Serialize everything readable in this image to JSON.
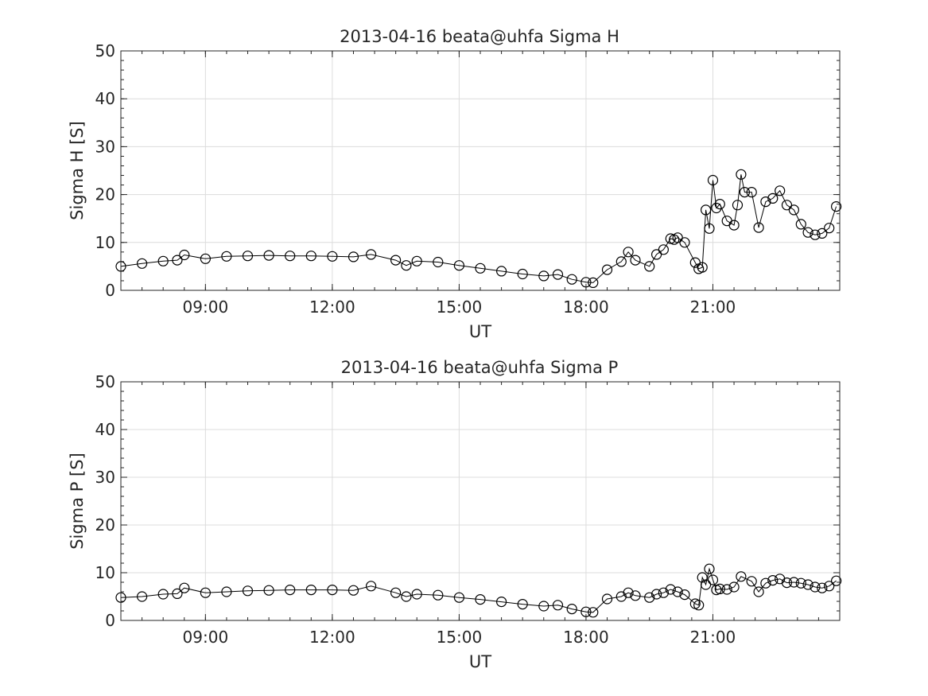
{
  "chart_data": [
    {
      "type": "line",
      "title": "2013-04-16  beata@uhfa Sigma H",
      "xlabel": "UT",
      "ylabel": "Sigma H [S]",
      "xlim": [
        "07:00",
        "24:00"
      ],
      "ylim": [
        0,
        50
      ],
      "xticks": [
        "09:00",
        "12:00",
        "15:00",
        "18:00",
        "21:00"
      ],
      "yticks": [
        0,
        10,
        20,
        30,
        40,
        50
      ],
      "grid": true,
      "marker": "open-circle",
      "color": "#000000",
      "x": [
        "07:00",
        "07:30",
        "08:00",
        "08:20",
        "08:30",
        "09:00",
        "09:30",
        "10:00",
        "10:30",
        "11:00",
        "11:30",
        "12:00",
        "12:30",
        "12:55",
        "13:30",
        "13:45",
        "14:00",
        "14:30",
        "15:00",
        "15:30",
        "16:00",
        "16:30",
        "17:00",
        "17:20",
        "17:40",
        "18:00",
        "18:10",
        "18:30",
        "18:50",
        "19:00",
        "19:10",
        "19:30",
        "19:40",
        "19:50",
        "20:00",
        "20:05",
        "20:10",
        "20:20",
        "20:35",
        "20:40",
        "20:45",
        "20:50",
        "20:55",
        "21:00",
        "21:05",
        "21:10",
        "21:20",
        "21:30",
        "21:35",
        "21:40",
        "21:45",
        "21:55",
        "22:05",
        "22:15",
        "22:25",
        "22:35",
        "22:45",
        "22:55",
        "23:05",
        "23:15",
        "23:25",
        "23:35",
        "23:45",
        "23:55"
      ],
      "y": [
        5.0,
        5.6,
        6.1,
        6.3,
        7.4,
        6.6,
        7.1,
        7.2,
        7.3,
        7.2,
        7.2,
        7.1,
        7.0,
        7.5,
        6.3,
        5.2,
        6.1,
        5.9,
        5.2,
        4.6,
        4.0,
        3.4,
        3.0,
        3.3,
        2.3,
        1.7,
        1.6,
        4.3,
        6.0,
        8.0,
        6.3,
        5.0,
        7.5,
        8.5,
        10.8,
        10.6,
        11.0,
        10.0,
        5.8,
        4.5,
        4.8,
        16.8,
        12.9,
        23.0,
        17.2,
        18.0,
        14.5,
        13.6,
        17.8,
        24.2,
        20.5,
        20.5,
        13.1,
        18.5,
        19.2,
        20.8,
        17.8,
        16.8,
        13.8,
        12.1,
        11.6,
        11.9,
        13.0,
        17.5
      ]
    },
    {
      "type": "line",
      "title": "2013-04-16  beata@uhfa Sigma P",
      "xlabel": "UT",
      "ylabel": "Sigma P [S]",
      "xlim": [
        "07:00",
        "24:00"
      ],
      "ylim": [
        0,
        50
      ],
      "xticks": [
        "09:00",
        "12:00",
        "15:00",
        "18:00",
        "21:00"
      ],
      "yticks": [
        0,
        10,
        20,
        30,
        40,
        50
      ],
      "grid": true,
      "marker": "open-circle",
      "color": "#000000",
      "x": [
        "07:00",
        "07:30",
        "08:00",
        "08:20",
        "08:30",
        "09:00",
        "09:30",
        "10:00",
        "10:30",
        "11:00",
        "11:30",
        "12:00",
        "12:30",
        "12:55",
        "13:30",
        "13:45",
        "14:00",
        "14:30",
        "15:00",
        "15:30",
        "16:00",
        "16:30",
        "17:00",
        "17:20",
        "17:40",
        "18:00",
        "18:10",
        "18:30",
        "18:50",
        "19:00",
        "19:10",
        "19:30",
        "19:40",
        "19:50",
        "20:00",
        "20:10",
        "20:20",
        "20:35",
        "20:40",
        "20:45",
        "20:50",
        "20:55",
        "21:00",
        "21:05",
        "21:10",
        "21:20",
        "21:30",
        "21:40",
        "21:55",
        "22:05",
        "22:15",
        "22:25",
        "22:35",
        "22:45",
        "22:55",
        "23:05",
        "23:15",
        "23:25",
        "23:35",
        "23:45",
        "23:55"
      ],
      "y": [
        4.8,
        5.0,
        5.5,
        5.6,
        6.8,
        5.8,
        6.0,
        6.2,
        6.3,
        6.4,
        6.4,
        6.4,
        6.3,
        7.2,
        5.8,
        5.0,
        5.5,
        5.3,
        4.8,
        4.4,
        3.9,
        3.4,
        3.0,
        3.2,
        2.4,
        1.8,
        1.7,
        4.5,
        5.0,
        5.8,
        5.2,
        4.8,
        5.5,
        5.8,
        6.5,
        6.0,
        5.4,
        3.5,
        3.2,
        9.0,
        7.5,
        10.8,
        8.5,
        6.4,
        6.6,
        6.5,
        7.0,
        9.2,
        8.2,
        6.0,
        7.8,
        8.4,
        8.7,
        7.9,
        8.0,
        7.8,
        7.5,
        7.0,
        6.8,
        7.2,
        8.3
      ]
    }
  ]
}
